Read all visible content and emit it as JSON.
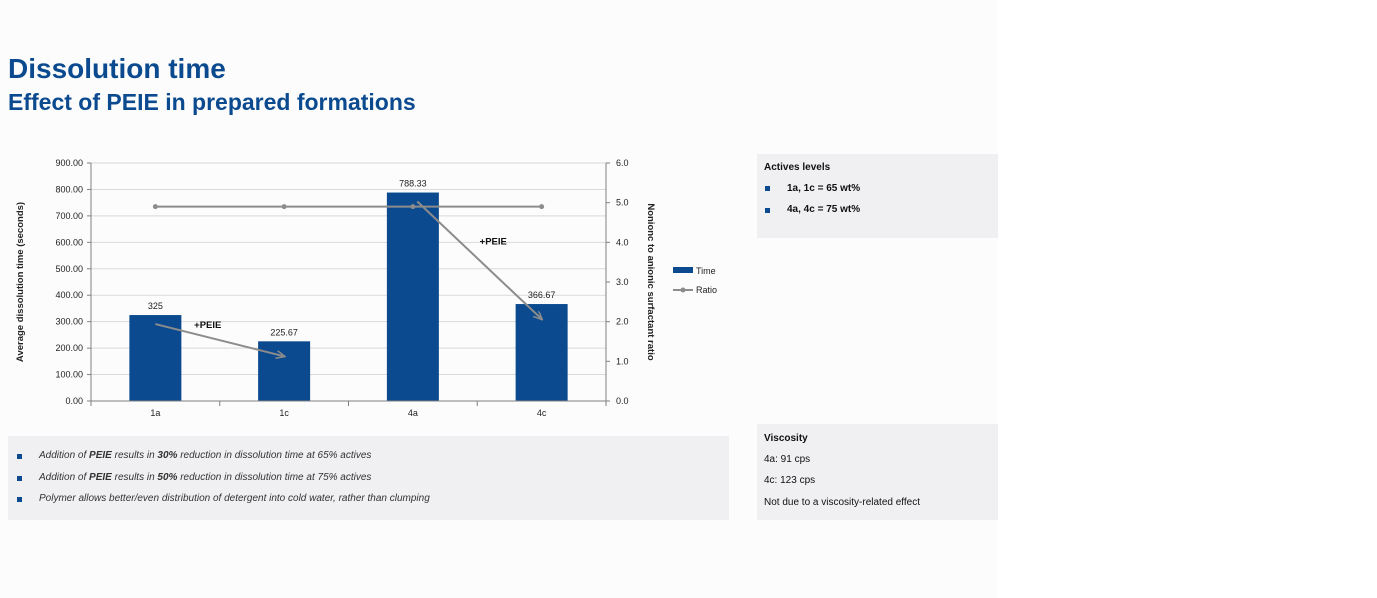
{
  "page": {
    "title": "Dissolution time",
    "subtitle": "Effect of PEIE in prepared formations"
  },
  "chart_data": {
    "type": "bar",
    "categories": [
      "1a",
      "1c",
      "4a",
      "4c"
    ],
    "series": [
      {
        "name": "Time",
        "type": "bar",
        "axis": "left",
        "values": [
          325,
          225.67,
          788.33,
          366.67
        ],
        "labels": [
          "325",
          "225.67",
          "788.33",
          "366.67"
        ]
      },
      {
        "name": "Ratio",
        "type": "line",
        "axis": "right",
        "values": [
          4.9,
          4.9,
          4.9,
          4.9
        ]
      }
    ],
    "ylabel": "Average dissolution time (seconds)",
    "y2label": "Nonionc to anionic surfactant ratio",
    "ylim": [
      0,
      900
    ],
    "y2lim": [
      0,
      6
    ],
    "yticks": [
      "0.00",
      "100.00",
      "200.00",
      "300.00",
      "400.00",
      "500.00",
      "600.00",
      "700.00",
      "800.00",
      "900.00"
    ],
    "y2ticks": [
      "0.0",
      "1.0",
      "2.0",
      "3.0",
      "4.0",
      "5.0",
      "6.0"
    ],
    "grid": true,
    "legend": "right",
    "annotations": [
      {
        "text": "+PEIE",
        "from_category": "1a",
        "from_value": 325,
        "to_category": "1c",
        "to_value": 225.67
      },
      {
        "text": "+PEIE",
        "from_category": "4a",
        "from_value": 788.33,
        "to_category": "4c",
        "to_value": 366.67
      }
    ],
    "colors": {
      "bar": "#0b4a8f",
      "line": "#8c8c8c",
      "grid": "#d9d9d9",
      "axis": "#808080"
    }
  },
  "bullets": [
    {
      "pre": "Addition of ",
      "b1": "PEIE",
      "mid": " results in ",
      "b2": "30%",
      "post": " reduction in dissolution time at 65% actives"
    },
    {
      "pre": "Addition of ",
      "b1": "PEIE",
      "mid": " results in ",
      "b2": "50%",
      "post": " reduction in dissolution time at 75% actives"
    },
    {
      "text": "Polymer allows better/even distribution of detergent into cold water, rather than clumping"
    }
  ],
  "actives": {
    "title": "Actives levels",
    "items": [
      "1a, 1c = 65 wt%",
      "4a, 4c = 75 wt%"
    ]
  },
  "viscosity": {
    "title": "Viscosity",
    "lines": [
      "4a:  91 cps",
      "4c: 123 cps",
      "Not due to a viscosity-related effect"
    ]
  }
}
